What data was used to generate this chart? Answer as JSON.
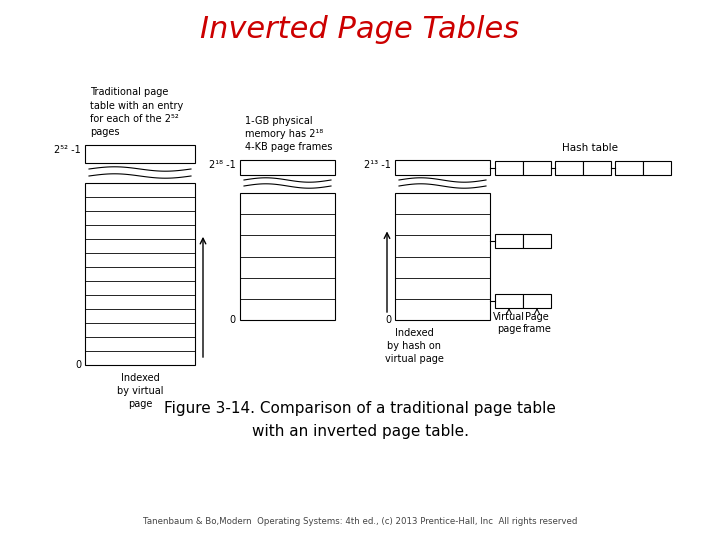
{
  "title": "Inverted Page Tables",
  "title_color": "#cc0000",
  "title_fontsize": 22,
  "figure_caption": "Figure 3-14. Comparison of a traditional page table\nwith an inverted page table.",
  "footer": "Tanenbaum & Bo,Modern  Operating Systems: 4th ed., (c) 2013 Prentice-Hall, Inc  All rights reserved",
  "bg_color": "#ffffff",
  "trad_label": "Traditional page\ntable with an entry\nfor each of the 2⁵²\npages",
  "trad_top_label": "2⁵² -1",
  "trad_bottom_label": "0",
  "trad_index_label": "Indexed\nby virtual\npage",
  "phys_label": "1-GB physical\nmemory has 2¹⁸\n4-KB page frames",
  "phys_top_label": "2¹⁸ -1",
  "phys_bottom_label": "0",
  "inv_top_label": "2¹³ -1",
  "inv_bottom_label": "0",
  "inv_index_label": "Indexed\nby hash on\nvirtual page",
  "hash_label": "Hash table",
  "vpage_label": "Virtual\npage",
  "pframe_label": "Page\nframe"
}
